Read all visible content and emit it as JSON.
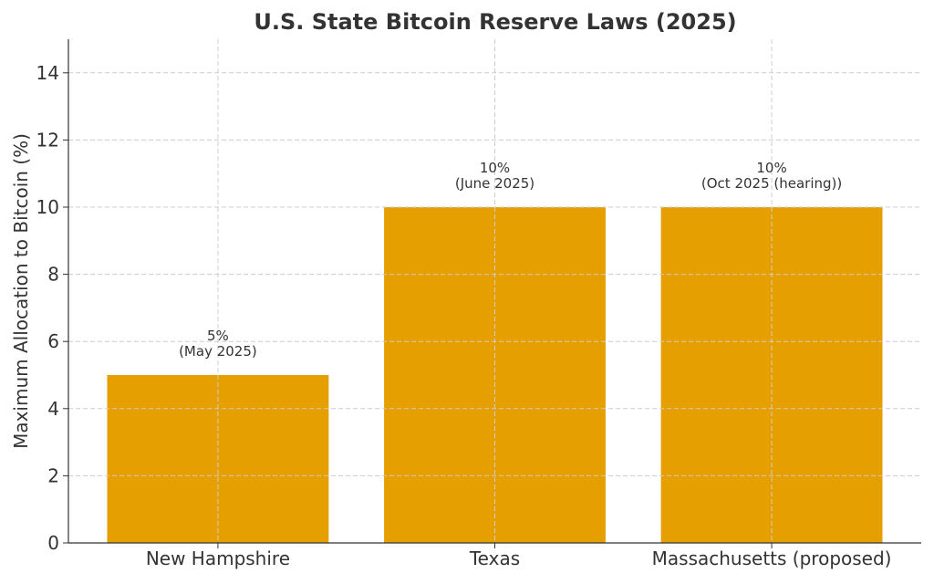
{
  "chart_data": {
    "type": "bar",
    "title": "U.S. State Bitcoin Reserve Laws (2025)",
    "xlabel": "",
    "ylabel": "Maximum Allocation to Bitcoin (%)",
    "categories": [
      "New Hampshire",
      "Texas",
      "Massachusetts (proposed)"
    ],
    "values": [
      5,
      10,
      10
    ],
    "annotations": [
      [
        "5%",
        "(May 2025)"
      ],
      [
        "10%",
        "(June 2025)"
      ],
      [
        "10%",
        "(Oct 2025 (hearing))"
      ]
    ],
    "ylim": [
      0,
      15
    ],
    "yticks": [
      0,
      2,
      4,
      6,
      8,
      10,
      12,
      14
    ],
    "grid": true,
    "bar_color": "#E69F00"
  }
}
